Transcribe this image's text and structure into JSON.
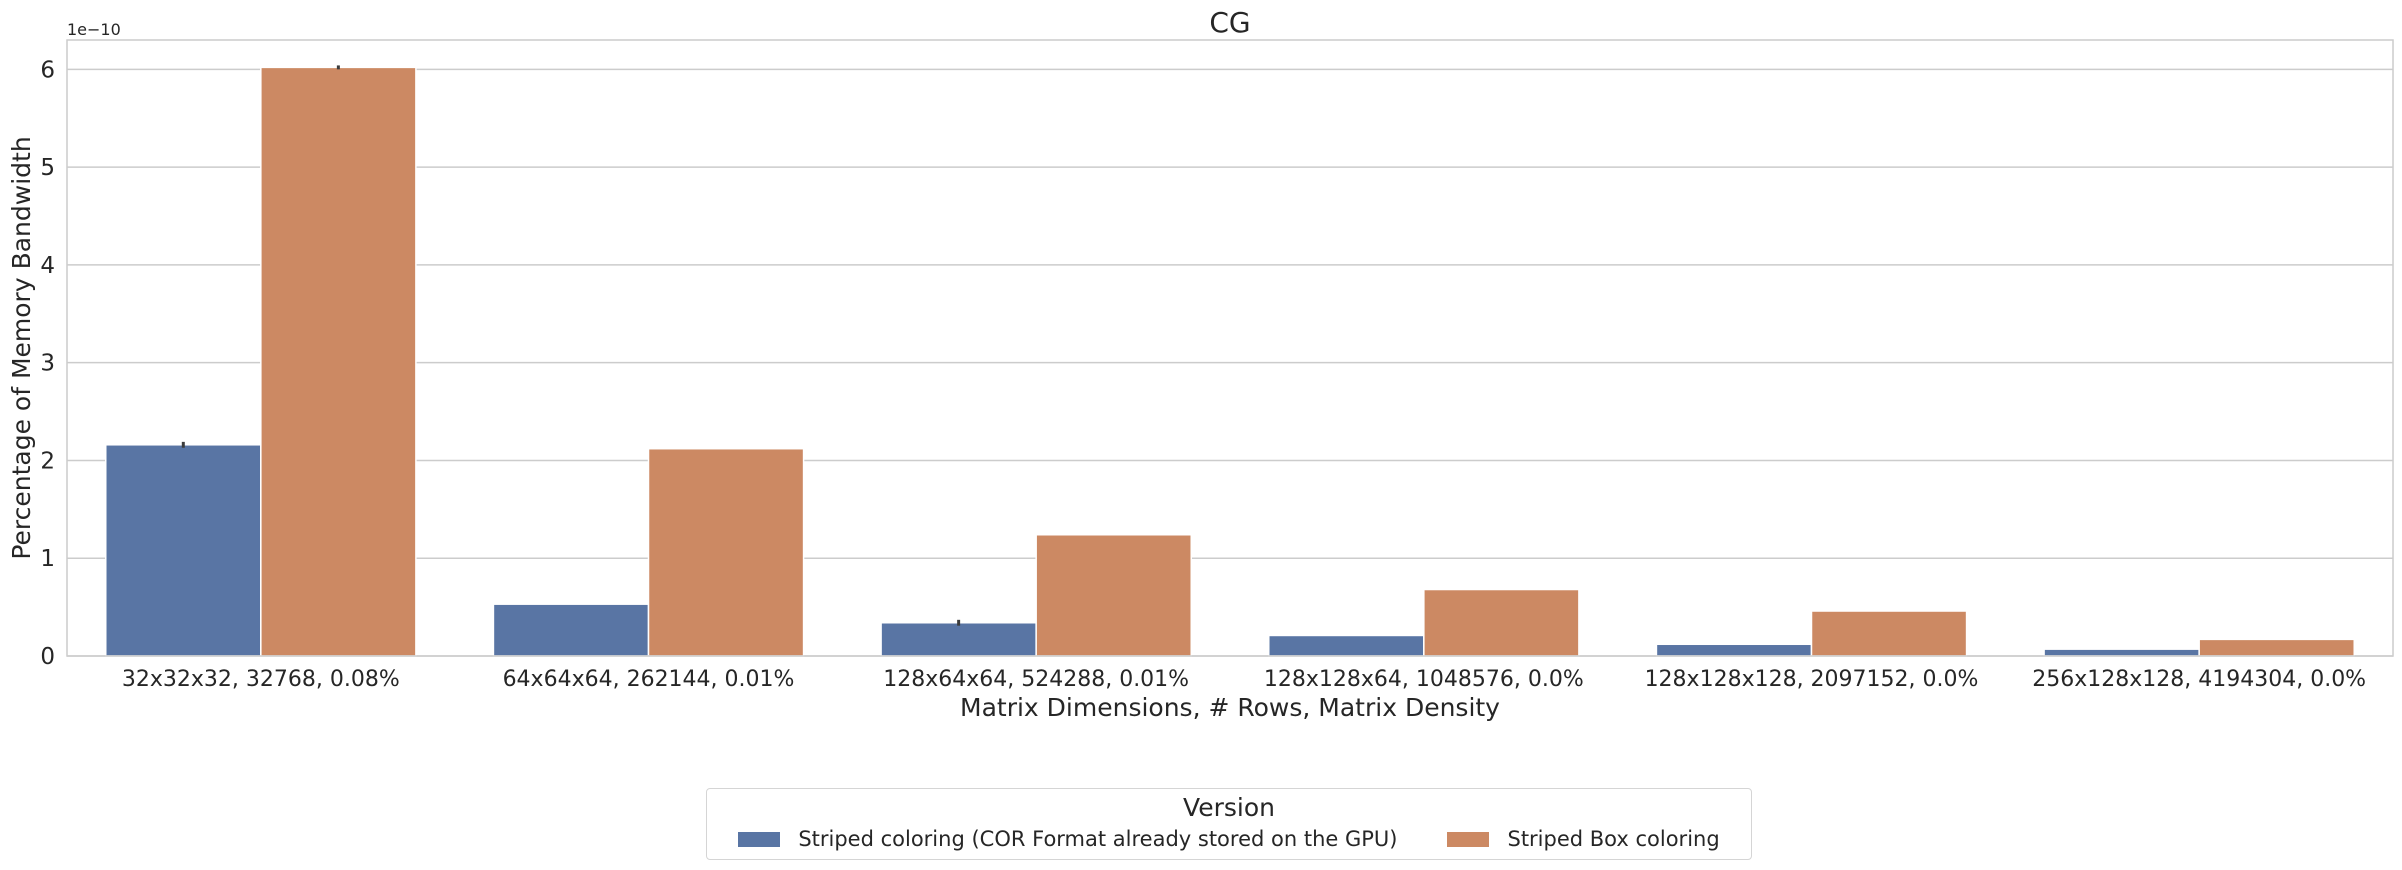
{
  "chart_data": {
    "type": "bar",
    "title": "CG",
    "xlabel": "Matrix Dimensions, # Rows, Matrix Density",
    "ylabel": "Percentage of Memory Bandwidth",
    "offset_text": "1e−10",
    "ylim": [
      0,
      6.3
    ],
    "yticks": [
      0,
      1,
      2,
      3,
      4,
      5,
      6
    ],
    "grid": true,
    "legend_placement": "bottom-center",
    "categories": [
      "32x32x32, 32768, 0.08%",
      "64x64x64, 262144, 0.01%",
      "128x64x64, 524288, 0.01%",
      "128x128x64, 1048576, 0.0%",
      "128x128x128, 2097152, 0.0%",
      "256x128x128, 4194304, 0.0%"
    ],
    "series": [
      {
        "name": "Striped coloring (COR Format already stored on the GPU)",
        "color": "#5975a4",
        "values": [
          2.16,
          0.53,
          0.34,
          0.21,
          0.12,
          0.07
        ],
        "errors": [
          0.03,
          0.0,
          0.03,
          0.0,
          0.0,
          0.0
        ]
      },
      {
        "name": "Striped Box coloring",
        "color": "#cc8963",
        "values": [
          6.02,
          2.12,
          1.24,
          0.68,
          0.46,
          0.17
        ],
        "errors": [
          0.02,
          0.0,
          0.0,
          0.0,
          0.0,
          0.0
        ]
      }
    ]
  },
  "legend": {
    "title": "Version"
  }
}
